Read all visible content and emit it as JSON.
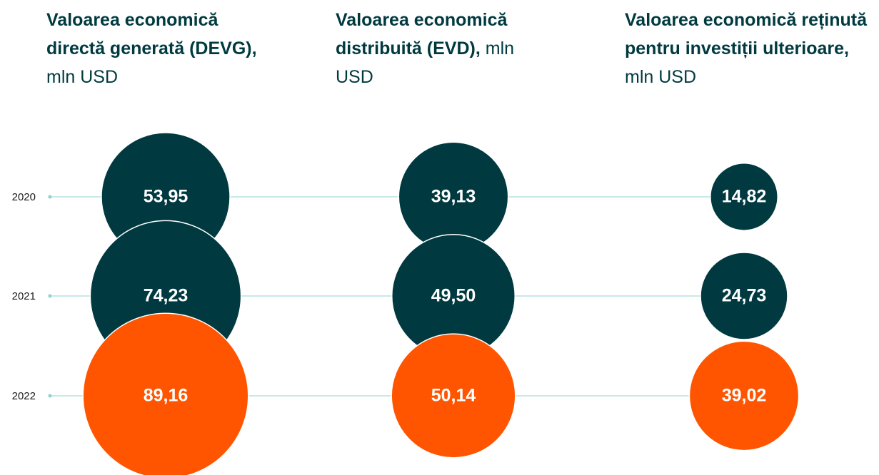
{
  "chart_data": {
    "type": "bubble",
    "categories": [
      "2020",
      "2021",
      "2022"
    ],
    "colors": [
      "#003a40",
      "#003a40",
      "#ff5500"
    ],
    "series": [
      {
        "name": "Valoarea economică directă generată (DEVG),",
        "unit": "mln USD",
        "values": [
          53.95,
          74.23,
          89.16
        ],
        "value_labels": [
          "53,95",
          "74,23",
          "89,16"
        ]
      },
      {
        "name": "Valoarea economică distribuită (EVD),",
        "unit": "mln USD",
        "values": [
          39.13,
          49.5,
          50.14
        ],
        "value_labels": [
          "39,13",
          "49,50",
          "50,14"
        ]
      },
      {
        "name": "Valoarea economică reținută pentru investiții ulterioare,",
        "unit": "mln USD",
        "values": [
          14.82,
          24.73,
          39.02
        ],
        "value_labels": [
          "14,82",
          "24,73",
          "39,02"
        ]
      }
    ]
  }
}
